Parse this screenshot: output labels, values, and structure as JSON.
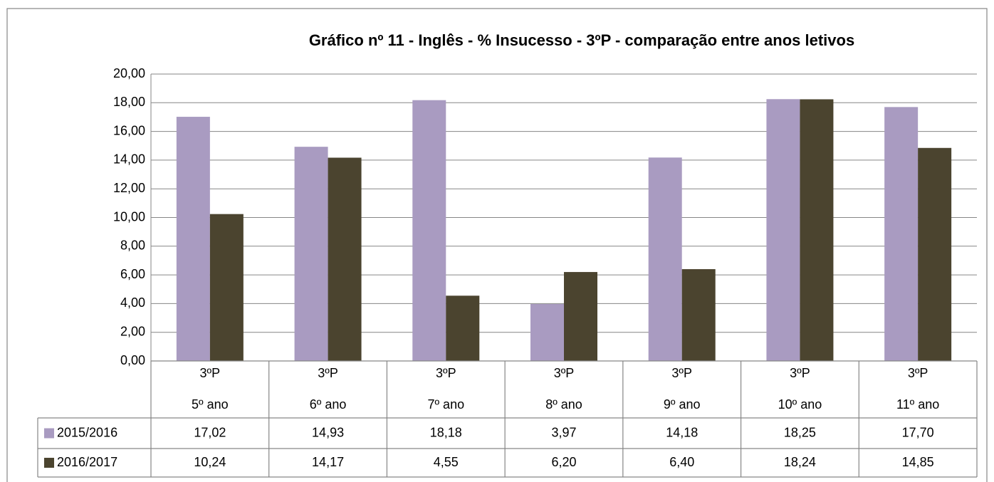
{
  "chart_data": {
    "type": "bar",
    "title": "Gráfico nº 11 - Inglês - % Insucesso - 3ºP - comparação entre anos letivos",
    "category_groups": [
      "3ºP",
      "3ºP",
      "3ºP",
      "3ºP",
      "3ºP",
      "3ºP",
      "3ºP"
    ],
    "categories": [
      "5º ano",
      "6º ano",
      "7º ano",
      "8º ano",
      "9º ano",
      "10º ano",
      "11º ano"
    ],
    "series": [
      {
        "name": "2015/2016",
        "color": "#a99bc1",
        "values": [
          17.02,
          14.93,
          18.18,
          3.97,
          14.18,
          18.25,
          17.7
        ],
        "value_labels": [
          "17,02",
          "14,93",
          "18,18",
          "3,97",
          "14,18",
          "18,25",
          "17,70"
        ]
      },
      {
        "name": "2016/2017",
        "color": "#4b442f",
        "values": [
          10.24,
          14.17,
          4.55,
          6.2,
          6.4,
          18.24,
          14.85
        ],
        "value_labels": [
          "10,24",
          "14,17",
          "4,55",
          "6,20",
          "6,40",
          "18,24",
          "14,85"
        ]
      }
    ],
    "ylim": [
      0,
      20
    ],
    "yticks": [
      {
        "value": 0,
        "label": "0,00"
      },
      {
        "value": 2,
        "label": "2,00"
      },
      {
        "value": 4,
        "label": "4,00"
      },
      {
        "value": 6,
        "label": "6,00"
      },
      {
        "value": 8,
        "label": "8,00"
      },
      {
        "value": 10,
        "label": "10,00"
      },
      {
        "value": 12,
        "label": "12,00"
      },
      {
        "value": 14,
        "label": "14,00"
      },
      {
        "value": 16,
        "label": "16,00"
      },
      {
        "value": 18,
        "label": "18,00"
      },
      {
        "value": 20,
        "label": "20,00"
      }
    ],
    "grid": true
  }
}
